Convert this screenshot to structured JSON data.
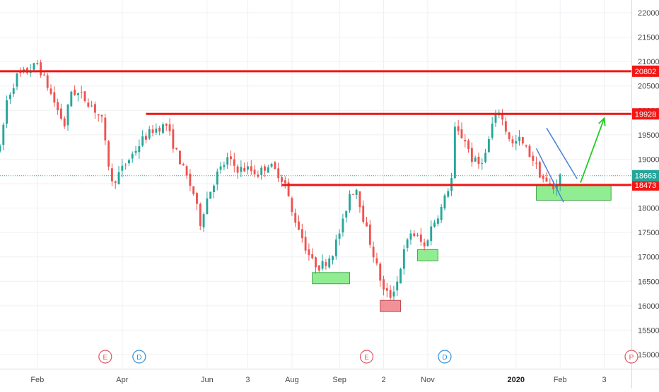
{
  "chart_data": {
    "type": "candlestick",
    "y_axis": {
      "ticks": [
        15000,
        15500,
        16000,
        16500,
        17000,
        17500,
        18000,
        18500,
        19000,
        19500,
        20000,
        20500,
        21000,
        21500,
        22000
      ],
      "range": [
        14850,
        22150
      ],
      "side": "right"
    },
    "x_axis": {
      "ticks": [
        {
          "label": "Feb",
          "t": 11
        },
        {
          "label": "Apr",
          "t": 36
        },
        {
          "label": "Jun",
          "t": 61
        },
        {
          "label": "3",
          "t": 73
        },
        {
          "label": "Aug",
          "t": 86
        },
        {
          "label": "Sep",
          "t": 100
        },
        {
          "label": "2",
          "t": 113
        },
        {
          "label": "Nov",
          "t": 126
        },
        {
          "label": "2020",
          "t": 152,
          "bold": true
        },
        {
          "label": "Feb",
          "t": 165
        },
        {
          "label": "3",
          "t": 178
        }
      ],
      "range": [
        0,
        186
      ]
    },
    "grid": true,
    "price_anchors": [
      [
        0,
        19200
      ],
      [
        2,
        20200
      ],
      [
        5,
        20700
      ],
      [
        8,
        20800
      ],
      [
        11,
        20950
      ],
      [
        14,
        20500
      ],
      [
        17,
        20000
      ],
      [
        19,
        19700
      ],
      [
        21,
        20400
      ],
      [
        24,
        20300
      ],
      [
        27,
        20100
      ],
      [
        30,
        19800
      ],
      [
        31,
        19300
      ],
      [
        33,
        18500
      ],
      [
        36,
        18800
      ],
      [
        39,
        19100
      ],
      [
        42,
        19400
      ],
      [
        45,
        19600
      ],
      [
        49,
        19700
      ],
      [
        51,
        19300
      ],
      [
        54,
        18800
      ],
      [
        57,
        18300
      ],
      [
        59,
        17700
      ],
      [
        61,
        18200
      ],
      [
        64,
        18700
      ],
      [
        67,
        19000
      ],
      [
        70,
        18800
      ],
      [
        73,
        18800
      ],
      [
        76,
        18700
      ],
      [
        79,
        18900
      ],
      [
        82,
        18700
      ],
      [
        84,
        18500
      ],
      [
        86,
        17900
      ],
      [
        88,
        17600
      ],
      [
        90,
        17200
      ],
      [
        92,
        16900
      ],
      [
        94,
        16800
      ],
      [
        96,
        16900
      ],
      [
        98,
        17100
      ],
      [
        101,
        17700
      ],
      [
        103,
        18300
      ],
      [
        105,
        18400
      ],
      [
        107,
        17800
      ],
      [
        109,
        17300
      ],
      [
        111,
        16800
      ],
      [
        113,
        16300
      ],
      [
        115,
        16200
      ],
      [
        117,
        16500
      ],
      [
        119,
        17100
      ],
      [
        121,
        17500
      ],
      [
        123,
        17400
      ],
      [
        125,
        17200
      ],
      [
        127,
        17600
      ],
      [
        130,
        18000
      ],
      [
        132,
        18400
      ],
      [
        133,
        18600
      ],
      [
        134,
        19600
      ],
      [
        137,
        19400
      ],
      [
        139,
        19000
      ],
      [
        141,
        18900
      ],
      [
        143,
        19100
      ],
      [
        145,
        19700
      ],
      [
        147,
        20000
      ],
      [
        149,
        19600
      ],
      [
        151,
        19300
      ],
      [
        153,
        19400
      ],
      [
        155,
        19200
      ],
      [
        157,
        19000
      ],
      [
        159,
        18700
      ],
      [
        161,
        18500
      ],
      [
        163,
        18400
      ],
      [
        165,
        18650
      ]
    ],
    "horizontal_levels": [
      {
        "price": 20802,
        "label": "20802",
        "t_start": 0,
        "color": "#f21616"
      },
      {
        "price": 19928,
        "label": "19928",
        "t_start": 43,
        "color": "#f21616"
      },
      {
        "price": 18473,
        "label": "18473",
        "t_start": 83,
        "color": "#f21616"
      }
    ],
    "last_price": {
      "price": 18663,
      "label": "18663",
      "color": "#26a69a"
    },
    "zones": [
      {
        "t0": 92,
        "t1": 103,
        "p0": 16450,
        "p1": 16680,
        "color": "green"
      },
      {
        "t0": 123,
        "t1": 129,
        "p0": 16920,
        "p1": 17150,
        "color": "green"
      },
      {
        "t0": 112,
        "t1": 118,
        "p0": 15880,
        "p1": 16110,
        "color": "red"
      },
      {
        "t0": 158,
        "t1": 180,
        "p0": 18160,
        "p1": 18480,
        "color": "green"
      }
    ],
    "channel_lines": [
      {
        "a": [
          158,
          19220
        ],
        "b": [
          166,
          18120
        ],
        "color": "#4a7fd4"
      },
      {
        "a": [
          161,
          19640
        ],
        "b": [
          170,
          18600
        ],
        "color": "#4a7fd4"
      }
    ],
    "projection_arrow": {
      "from": [
        171,
        18520
      ],
      "to": [
        178,
        19840
      ],
      "color": "#22cc22"
    },
    "event_markers": [
      {
        "t": 31,
        "letter": "E",
        "color": "#e05263"
      },
      {
        "t": 41,
        "letter": "D",
        "color": "#2f8fd8"
      },
      {
        "t": 108,
        "letter": "E",
        "color": "#e05263"
      },
      {
        "t": 131,
        "letter": "D",
        "color": "#2f8fd8"
      },
      {
        "t": 186,
        "letter": "P",
        "color": "#e05263"
      }
    ],
    "colors": {
      "up": "#26a69a",
      "down": "#ef5350",
      "grid": "#eef0f4",
      "axis_text": "#4a4a4a"
    }
  }
}
